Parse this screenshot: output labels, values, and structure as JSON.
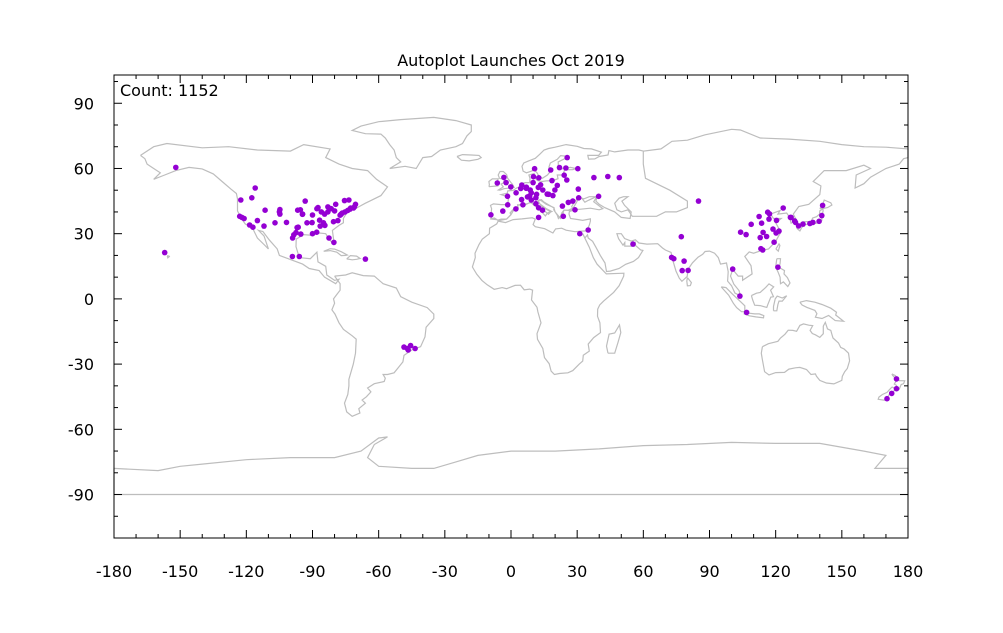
{
  "chart_data": {
    "type": "scatter",
    "title": "Autoplot Launches Oct 2019",
    "annotation": "Count: 1152",
    "xlabel": "",
    "ylabel": "",
    "xlim": [
      -180,
      180
    ],
    "ylim": [
      -110,
      103
    ],
    "xticks": [
      -180,
      -150,
      -120,
      -90,
      -60,
      -30,
      0,
      30,
      60,
      90,
      120,
      150,
      180
    ],
    "yticks": [
      90,
      60,
      30,
      0,
      -30,
      -60,
      -90
    ],
    "grid": false,
    "legend": "none",
    "colors": {
      "points": "#9400d3",
      "land": "#bdbdbd",
      "axes": "#000000"
    },
    "series": [
      {
        "points": [
          [
            -152,
            60.5
          ],
          [
            -157,
            21.3
          ],
          [
            -122.5,
            45.5
          ],
          [
            -123,
            38
          ],
          [
            -122,
            37.5
          ],
          [
            -121,
            37
          ],
          [
            -118.5,
            34
          ],
          [
            -117,
            33
          ],
          [
            -117.5,
            46.5
          ],
          [
            -116,
            51
          ],
          [
            -115,
            36
          ],
          [
            -111.5,
            40.8
          ],
          [
            -112,
            33.5
          ],
          [
            -105,
            40
          ],
          [
            -104.8,
            39
          ],
          [
            -107,
            35
          ],
          [
            -97,
            32.8
          ],
          [
            -96.5,
            33
          ],
          [
            -95.3,
            29.8
          ],
          [
            -97.5,
            30.5
          ],
          [
            -98.5,
            29.5
          ],
          [
            -93.3,
            45
          ],
          [
            -95.5,
            41
          ],
          [
            -94.5,
            39
          ],
          [
            -90,
            38.6
          ],
          [
            -87.5,
            42
          ],
          [
            -88,
            41.5
          ],
          [
            -86,
            40
          ],
          [
            -84.5,
            39
          ],
          [
            -83,
            42.3
          ],
          [
            -81.5,
            41.5
          ],
          [
            -80,
            40.5
          ],
          [
            -85,
            35
          ],
          [
            -86.5,
            33.5
          ],
          [
            -84.4,
            33.8
          ],
          [
            -80.5,
            35.5
          ],
          [
            -78.5,
            36
          ],
          [
            -77,
            39
          ],
          [
            -76.5,
            39.5
          ],
          [
            -75.2,
            40
          ],
          [
            -74,
            40.7
          ],
          [
            -73,
            41.3
          ],
          [
            -71,
            42.3
          ],
          [
            -70.5,
            43.5
          ],
          [
            -79.5,
            43.5
          ],
          [
            -75.5,
            45.2
          ],
          [
            -73.5,
            45.5
          ],
          [
            -90,
            30
          ],
          [
            -82.5,
            28
          ],
          [
            -80.3,
            26
          ],
          [
            -96,
            19.5
          ],
          [
            -99.1,
            19.5
          ],
          [
            -66,
            18.3
          ],
          [
            -46.6,
            -23.5
          ],
          [
            -47,
            -22.8
          ],
          [
            -45.5,
            -21.5
          ],
          [
            -48.5,
            -22.2
          ],
          [
            -43.5,
            -22.8
          ],
          [
            -9.1,
            38.7
          ],
          [
            -3.7,
            40.4
          ],
          [
            2.2,
            41.4
          ],
          [
            -1.5,
            43.3
          ],
          [
            2.3,
            48.8
          ],
          [
            -1.6,
            47.2
          ],
          [
            4.8,
            45.7
          ],
          [
            5.4,
            43.3
          ],
          [
            -0.1,
            51.5
          ],
          [
            -2.2,
            53.5
          ],
          [
            -3.2,
            55.9
          ],
          [
            -6.2,
            53.3
          ],
          [
            4.9,
            52.4
          ],
          [
            4.4,
            50.8
          ],
          [
            6.9,
            50.9
          ],
          [
            7,
            51.4
          ],
          [
            8.7,
            50.1
          ],
          [
            9.2,
            48.8
          ],
          [
            11.6,
            48.1
          ],
          [
            10,
            53.5
          ],
          [
            13.4,
            52.5
          ],
          [
            12.4,
            51.3
          ],
          [
            8.5,
            47.4
          ],
          [
            7.5,
            46.9
          ],
          [
            11.3,
            46.5
          ],
          [
            9.2,
            45.5
          ],
          [
            11.3,
            43.8
          ],
          [
            12.5,
            41.9
          ],
          [
            14.3,
            40.8
          ],
          [
            12.5,
            37.5
          ],
          [
            16.4,
            48.2
          ],
          [
            14.4,
            50.1
          ],
          [
            17.1,
            48.1
          ],
          [
            19,
            47.5
          ],
          [
            21,
            52.2
          ],
          [
            19.9,
            50.1
          ],
          [
            18.6,
            54.4
          ],
          [
            10.2,
            56.2
          ],
          [
            12.6,
            55.7
          ],
          [
            10.7,
            59.9
          ],
          [
            18,
            59.3
          ],
          [
            22,
            60.4
          ],
          [
            24.9,
            60.2
          ],
          [
            25.5,
            65
          ],
          [
            24.1,
            56.9
          ],
          [
            25.3,
            54.7
          ],
          [
            30.5,
            50.5
          ],
          [
            26,
            44.4
          ],
          [
            23.3,
            42.7
          ],
          [
            28,
            45
          ],
          [
            23.7,
            38
          ],
          [
            29,
            41
          ],
          [
            30.3,
            59.9
          ],
          [
            37.6,
            55.8
          ],
          [
            43.9,
            56.3
          ],
          [
            49.1,
            55.8
          ],
          [
            31.2,
            30
          ],
          [
            35,
            31.7
          ],
          [
            39.7,
            47.2
          ],
          [
            30.7,
            46.5
          ],
          [
            55.3,
            25.2
          ],
          [
            72.8,
            19.1
          ],
          [
            73.8,
            18.5
          ],
          [
            77.6,
            13
          ],
          [
            78.5,
            17.4
          ],
          [
            77.2,
            28.6
          ],
          [
            80.3,
            13.1
          ],
          [
            85,
            45
          ],
          [
            103.8,
            1.3
          ],
          [
            100.5,
            13.7
          ],
          [
            106.8,
            -6.2
          ],
          [
            106.6,
            29.6
          ],
          [
            104.1,
            30.7
          ],
          [
            108.9,
            34.3
          ],
          [
            113.3,
            23.1
          ],
          [
            114.1,
            22.5
          ],
          [
            114.3,
            30.6
          ],
          [
            113.6,
            34.8
          ],
          [
            116.4,
            39.9
          ],
          [
            117.2,
            39.1
          ],
          [
            118.8,
            32.1
          ],
          [
            120.2,
            30.3
          ],
          [
            121.5,
            31.2
          ],
          [
            117,
            36.7
          ],
          [
            120.4,
            36.1
          ],
          [
            123.4,
            41.8
          ],
          [
            113,
            28.2
          ],
          [
            115.9,
            28.7
          ],
          [
            119.3,
            26.1
          ],
          [
            112.5,
            37.9
          ],
          [
            121,
            14.6
          ],
          [
            127,
            37.5
          ],
          [
            129,
            35.2
          ],
          [
            126.7,
            37.5
          ],
          [
            128.6,
            35.9
          ],
          [
            139.7,
            35.7
          ],
          [
            135.5,
            34.7
          ],
          [
            136.9,
            35.2
          ],
          [
            141.3,
            43
          ],
          [
            130.4,
            33.6
          ],
          [
            132.4,
            34.4
          ],
          [
            140.9,
            38.3
          ],
          [
            174.8,
            -36.8
          ],
          [
            172.6,
            -43.5
          ],
          [
            174.8,
            -41.3
          ],
          [
            170.5,
            -45.9
          ],
          [
            -99,
            28
          ],
          [
            -92.5,
            35
          ],
          [
            -90.2,
            35.1
          ],
          [
            -86.8,
            36.2
          ],
          [
            -88.1,
            30.7
          ],
          [
            -94.6,
            38.9
          ],
          [
            -101.8,
            35.2
          ],
          [
            -96.7,
            40.8
          ],
          [
            -104.8,
            41.1
          ],
          [
            -83,
            40
          ],
          [
            -77.5,
            38.5
          ],
          [
            -71.4,
            41.8
          ],
          [
            -72.7,
            41.8
          ]
        ]
      }
    ]
  }
}
